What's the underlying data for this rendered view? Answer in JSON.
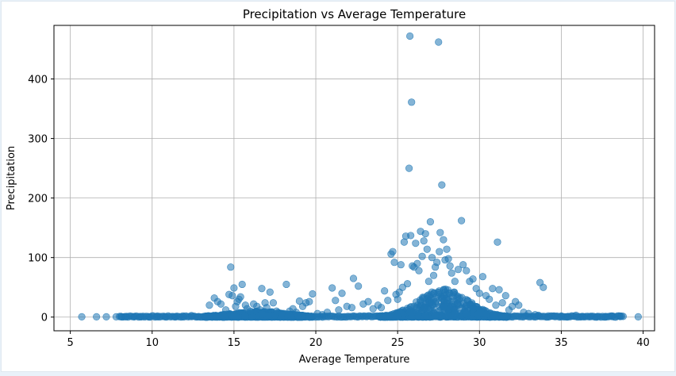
{
  "chart_data": {
    "type": "scatter",
    "title": "Precipitation vs Average Temperature",
    "xlabel": "Average Temperature",
    "ylabel": "Precipitation",
    "xlim": [
      4.0,
      40.7
    ],
    "ylim": [
      -23,
      490
    ],
    "xticks": [
      5,
      10,
      15,
      20,
      25,
      30,
      35,
      40
    ],
    "yticks": [
      0,
      100,
      200,
      300,
      400
    ],
    "grid": true,
    "point_color": "#1f77b4",
    "point_alpha": 0.55,
    "series": [
      {
        "points": [
          [
            5.7,
            0.5
          ],
          [
            6.6,
            0.5
          ],
          [
            7.2,
            0.5
          ],
          [
            7.8,
            0.5
          ],
          [
            8.1,
            0.5
          ],
          [
            8.4,
            0.5
          ],
          [
            8.9,
            0.5
          ],
          [
            9.3,
            0.5
          ],
          [
            9.8,
            0.5
          ],
          [
            10.3,
            0.5
          ],
          [
            10.8,
            0.5
          ],
          [
            11.4,
            0.5
          ],
          [
            11.9,
            0.5
          ],
          [
            12.4,
            2.5
          ],
          [
            12.8,
            0.5
          ],
          [
            13.3,
            1.5
          ],
          [
            13.5,
            20
          ],
          [
            13.8,
            32
          ],
          [
            14.0,
            26
          ],
          [
            14.2,
            22
          ],
          [
            14.5,
            12
          ],
          [
            14.7,
            38
          ],
          [
            14.8,
            84
          ],
          [
            14.9,
            36
          ],
          [
            15.0,
            49
          ],
          [
            15.1,
            18
          ],
          [
            15.2,
            26
          ],
          [
            15.3,
            30
          ],
          [
            15.4,
            34
          ],
          [
            15.5,
            55
          ],
          [
            15.7,
            20
          ],
          [
            15.8,
            14
          ],
          [
            16.0,
            10
          ],
          [
            16.2,
            22
          ],
          [
            16.4,
            18
          ],
          [
            16.6,
            12
          ],
          [
            16.7,
            48
          ],
          [
            16.9,
            24
          ],
          [
            17.0,
            16
          ],
          [
            17.2,
            42
          ],
          [
            17.4,
            24
          ],
          [
            17.6,
            10
          ],
          [
            17.9,
            6
          ],
          [
            18.2,
            55
          ],
          [
            18.4,
            10
          ],
          [
            18.6,
            14
          ],
          [
            18.8,
            8
          ],
          [
            19.0,
            27
          ],
          [
            19.2,
            18
          ],
          [
            19.4,
            24
          ],
          [
            19.6,
            26
          ],
          [
            19.8,
            39
          ],
          [
            20.1,
            6
          ],
          [
            20.4,
            4
          ],
          [
            20.7,
            8
          ],
          [
            21.0,
            49
          ],
          [
            21.2,
            28
          ],
          [
            21.4,
            12
          ],
          [
            21.6,
            40
          ],
          [
            21.9,
            18
          ],
          [
            22.2,
            16
          ],
          [
            22.3,
            65
          ],
          [
            22.6,
            52
          ],
          [
            22.9,
            22
          ],
          [
            23.2,
            26
          ],
          [
            23.5,
            14
          ],
          [
            23.8,
            20
          ],
          [
            24.0,
            16
          ],
          [
            24.2,
            44
          ],
          [
            24.4,
            28
          ],
          [
            24.6,
            106
          ],
          [
            24.7,
            110
          ],
          [
            24.8,
            92
          ],
          [
            24.9,
            38
          ],
          [
            25.0,
            30
          ],
          [
            25.1,
            42
          ],
          [
            25.2,
            88
          ],
          [
            25.3,
            50
          ],
          [
            25.4,
            126
          ],
          [
            25.5,
            136
          ],
          [
            25.6,
            56
          ],
          [
            25.7,
            250
          ],
          [
            25.75,
            472
          ],
          [
            25.8,
            137
          ],
          [
            25.85,
            361
          ],
          [
            25.9,
            86
          ],
          [
            26.0,
            84
          ],
          [
            26.1,
            124
          ],
          [
            26.2,
            90
          ],
          [
            26.3,
            78
          ],
          [
            26.4,
            144
          ],
          [
            26.5,
            102
          ],
          [
            26.6,
            128
          ],
          [
            26.7,
            140
          ],
          [
            26.8,
            114
          ],
          [
            26.9,
            60
          ],
          [
            27.0,
            160
          ],
          [
            27.1,
            100
          ],
          [
            27.2,
            70
          ],
          [
            27.3,
            84
          ],
          [
            27.4,
            92
          ],
          [
            27.5,
            462
          ],
          [
            27.55,
            110
          ],
          [
            27.6,
            142
          ],
          [
            27.7,
            222
          ],
          [
            27.8,
            130
          ],
          [
            27.9,
            96
          ],
          [
            28.0,
            114
          ],
          [
            28.1,
            98
          ],
          [
            28.2,
            86
          ],
          [
            28.3,
            74
          ],
          [
            28.5,
            60
          ],
          [
            28.7,
            80
          ],
          [
            28.9,
            162
          ],
          [
            29.0,
            88
          ],
          [
            29.2,
            78
          ],
          [
            29.4,
            60
          ],
          [
            29.6,
            64
          ],
          [
            29.8,
            48
          ],
          [
            30.0,
            40
          ],
          [
            30.2,
            68
          ],
          [
            30.4,
            36
          ],
          [
            30.6,
            30
          ],
          [
            30.8,
            48
          ],
          [
            31.0,
            20
          ],
          [
            31.1,
            126
          ],
          [
            31.2,
            46
          ],
          [
            31.4,
            24
          ],
          [
            31.6,
            36
          ],
          [
            31.8,
            12
          ],
          [
            32.0,
            18
          ],
          [
            32.2,
            26
          ],
          [
            32.4,
            20
          ],
          [
            32.7,
            8
          ],
          [
            33.0,
            6
          ],
          [
            33.4,
            4
          ],
          [
            33.6,
            3
          ],
          [
            33.7,
            58
          ],
          [
            33.9,
            50
          ],
          [
            34.2,
            2
          ],
          [
            34.6,
            1
          ],
          [
            35.0,
            1
          ],
          [
            35.4,
            1
          ],
          [
            35.9,
            3
          ],
          [
            36.3,
            1
          ],
          [
            36.8,
            1
          ],
          [
            37.2,
            1
          ],
          [
            37.7,
            1
          ],
          [
            38.1,
            1
          ],
          [
            38.6,
            1
          ],
          [
            39.7,
            0.5
          ]
        ]
      }
    ]
  }
}
